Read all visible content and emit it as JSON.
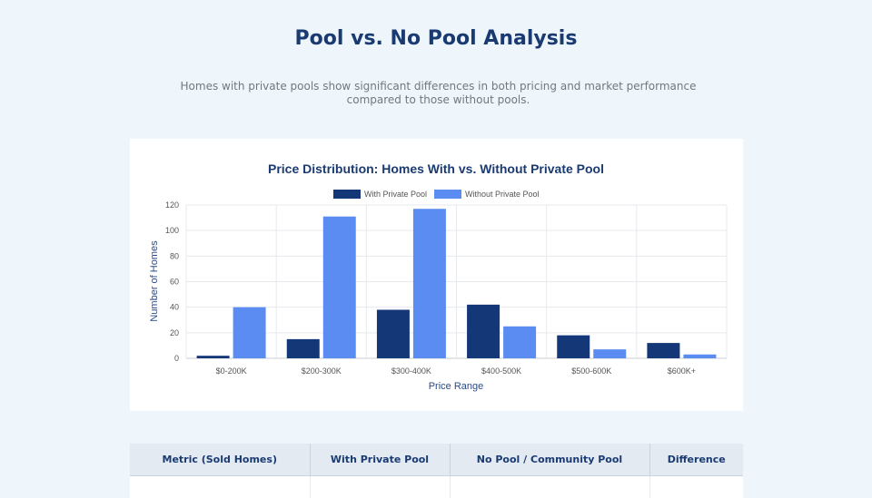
{
  "page": {
    "title": "Pool vs. No Pool Analysis",
    "subtitle": "Homes with private pools show significant differences in both pricing and market performance compared to those without pools."
  },
  "colors": {
    "with_pool": "#143778",
    "without_pool": "#5b8cf2",
    "title": "#1a3a72"
  },
  "chart_data": {
    "type": "bar",
    "title": "Price Distribution: Homes With vs. Without Private Pool",
    "xlabel": "Price Range",
    "ylabel": "Number of Homes",
    "categories": [
      "$0-200K",
      "$200-300K",
      "$300-400K",
      "$400-500K",
      "$500-600K",
      "$600K+"
    ],
    "series": [
      {
        "name": "With Private Pool",
        "values": [
          2,
          15,
          38,
          42,
          18,
          12
        ]
      },
      {
        "name": "Without Private Pool",
        "values": [
          40,
          111,
          117,
          25,
          7,
          3
        ]
      }
    ],
    "ylim": [
      0,
      120
    ],
    "yticks": [
      0,
      20,
      40,
      60,
      80,
      100,
      120
    ],
    "grid": true,
    "legend": "top-center"
  },
  "table": {
    "headers": [
      "Metric (Sold Homes)",
      "With Private Pool",
      "No Pool / Community Pool",
      "Difference"
    ]
  }
}
